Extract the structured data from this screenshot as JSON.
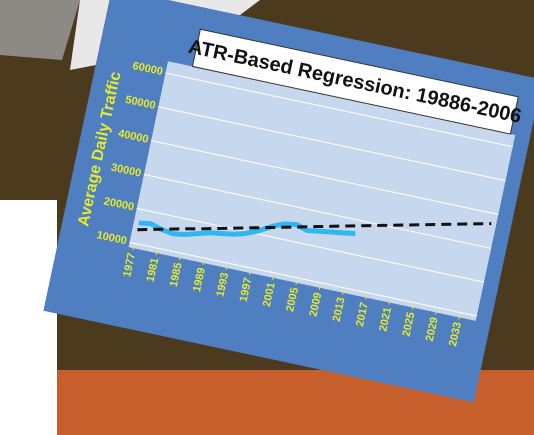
{
  "chart_data": {
    "type": "line",
    "title": "ATR-Based Regression:  19886-2006",
    "y_label": "Average Daily Traffic",
    "x": [
      1977,
      1979,
      1981,
      1983,
      1985,
      1987,
      1989,
      1991,
      1993,
      1995,
      1997,
      1999,
      2001,
      2003,
      2005,
      2007,
      2009,
      2011,
      2013,
      2035
    ],
    "series": [
      {
        "color": "#2fb8f0",
        "values": [
          16000,
          16500,
          15500,
          15000,
          15500,
          16500,
          17500,
          18000,
          18500,
          19500,
          21000,
          23000,
          24500,
          25000,
          24000,
          24500,
          25000,
          25500,
          26000,
          null
        ]
      },
      {
        "color": "#111111",
        "dashed": true,
        "values": [
          14000,
          14800,
          15600,
          16400,
          17200,
          17900,
          18700,
          19500,
          20300,
          21100,
          21900,
          22700,
          23500,
          24300,
          25100,
          25900,
          26700,
          27500,
          28300,
          37000
        ]
      }
    ],
    "xlim": [
      1977,
      2035
    ],
    "xticks": [
      1977,
      1981,
      1985,
      1989,
      1993,
      1997,
      2001,
      2005,
      2009,
      2013,
      2017,
      2021,
      2025,
      2029,
      2033
    ],
    "ylim": [
      10000,
      60000
    ],
    "yticks": [
      10000,
      20000,
      30000,
      40000,
      50000,
      60000
    ],
    "grid": true
  }
}
